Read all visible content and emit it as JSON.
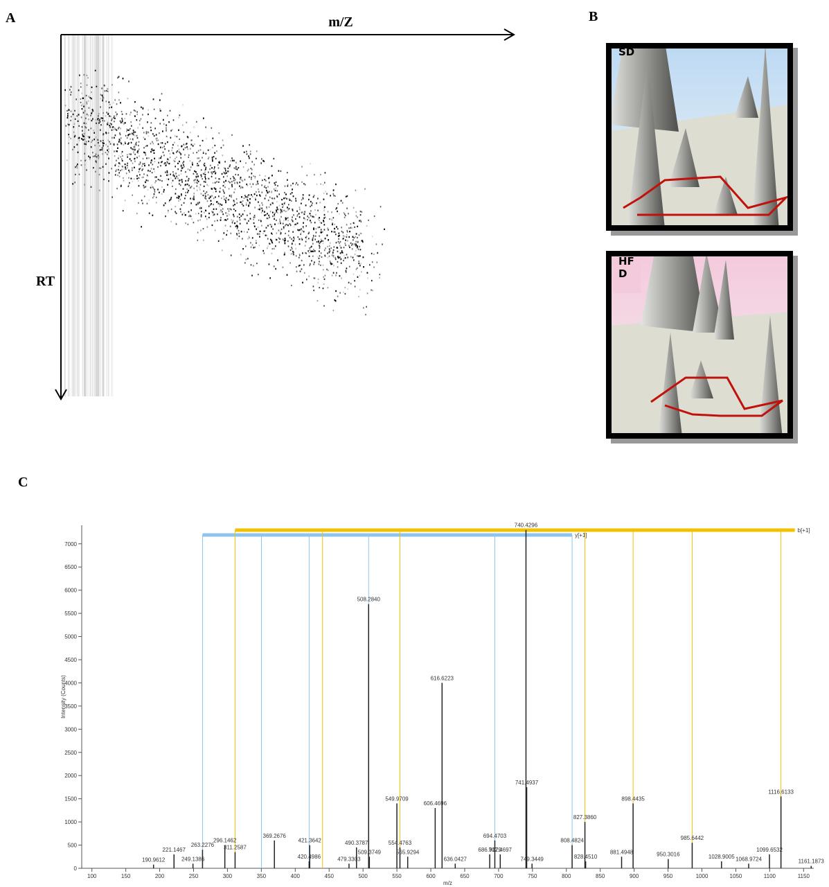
{
  "panel_a": {
    "letter": "A",
    "x_axis_label": "m/Z",
    "y_axis_label": "RT"
  },
  "panel_b": {
    "letter": "B",
    "top_label": "SD",
    "bottom_label_lines": [
      "HF",
      "D"
    ]
  },
  "panel_c": {
    "letter": "C"
  },
  "chart_data": {
    "type": "spectrum",
    "x_label": "m/z",
    "y_label": "Intensity (Counts)",
    "x": [
      190.9612,
      221.1467,
      249.1386,
      263.2276,
      296.1462,
      311.2587,
      369.2676,
      420.4986,
      421.3642,
      479.3303,
      490.3787,
      508.284,
      509.3749,
      549.9709,
      554.4763,
      565.9294,
      606.4696,
      616.6223,
      636.0427,
      686.9179,
      694.4703,
      702.4697,
      740.4296,
      741.4937,
      749.3449,
      808.4824,
      827.386,
      828.451,
      881.4948,
      898.4435,
      950.3016,
      985.6442,
      1028.9005,
      1068.9724,
      1099.6532,
      1116.6133,
      1161.1873
    ],
    "values": [
      80,
      300,
      100,
      400,
      500,
      350,
      600,
      150,
      500,
      100,
      450,
      5700,
      250,
      1400,
      450,
      250,
      1300,
      4000,
      100,
      300,
      600,
      300,
      7300,
      1750,
      100,
      500,
      1000,
      150,
      250,
      1400,
      200,
      550,
      150,
      100,
      300,
      1550,
      50
    ],
    "value_labels": [
      "190.9612",
      "221.1467",
      "249.1386",
      "263.2276",
      "296.1462",
      "311.2587",
      "369.2676",
      "420.4986",
      "421.3642",
      "479.3303",
      "490.3787",
      "508.2840",
      "509.3749",
      "549.9709",
      "554.4763",
      "565.9294",
      "606.4696",
      "616.6223",
      "636.0427",
      "686.9179",
      "694.4703",
      "702.4697",
      "740.4296",
      "741.4937",
      "749.3449",
      "808.4824",
      "827.3860",
      "828.4510",
      "881.4948",
      "898.4435",
      "950.3016",
      "985.6442",
      "1028.9005",
      "1068.9724",
      "1099.6532",
      "1116.6133",
      "1161.1873"
    ],
    "color": "#222222",
    "ion_series": [
      {
        "name": "y[+1]",
        "color": "#8ec4ee",
        "x": [
          263.2276,
          350.2,
          420.4986,
          508.284,
          694.4703,
          808.4824
        ]
      },
      {
        "name": "b[+1]",
        "color": "#f2c200",
        "x": [
          311.2587,
          440.3,
          554.4763,
          827.386,
          898.4435,
          985.6442,
          1116.6133
        ]
      }
    ],
    "xlim": [
      85,
      1165
    ],
    "ylim": [
      0,
      7400
    ],
    "xticks": [
      100,
      150,
      200,
      250,
      300,
      350,
      400,
      450,
      500,
      550,
      600,
      650,
      700,
      750,
      800,
      850,
      900,
      950,
      1000,
      1050,
      1100,
      1150
    ],
    "yticks": [
      0,
      500,
      1000,
      1500,
      2000,
      2500,
      3000,
      3500,
      4000,
      4500,
      5000,
      5500,
      6000,
      6500,
      7000
    ]
  }
}
